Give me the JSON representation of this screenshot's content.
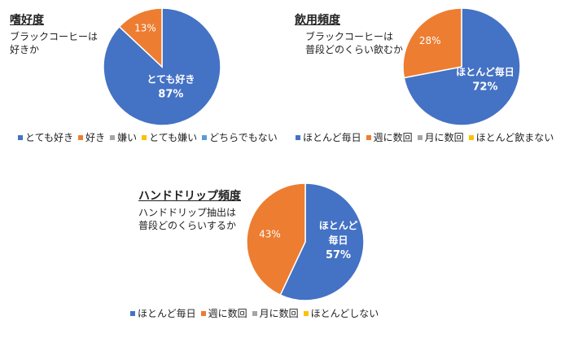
{
  "colors": {
    "blue": "#4472C4",
    "orange": "#ED7D31",
    "gray": "#A5A5A5",
    "yellow": "#FFC000"
  },
  "chart_data": [
    {
      "type": "pie",
      "title": "嗜好度",
      "subtitle_lines": [
        "ブラックコーヒーは",
        "好きか"
      ],
      "categories": [
        "とても好き",
        "好き",
        "嫌い",
        "とても嫌い",
        "どちらでもない"
      ],
      "values": [
        87,
        13,
        0,
        0,
        0
      ],
      "colors": [
        "#4472C4",
        "#ED7D31",
        "#A5A5A5",
        "#FFC000",
        "#5B9BD5"
      ],
      "labels": [
        {
          "lines": [
            "とても好き",
            "87%"
          ],
          "color": "#ffffff",
          "bold": true
        },
        {
          "lines": [
            "13%"
          ],
          "color": "#ffffff",
          "bold": false
        }
      ],
      "legend": "bottom"
    },
    {
      "type": "pie",
      "title": "飲用頻度",
      "subtitle_lines": [
        "ブラックコーヒーは",
        "普段どのくらい飲むか"
      ],
      "categories": [
        "ほとんど毎日",
        "週に数回",
        "月に数回",
        "ほとんど飲まない"
      ],
      "values": [
        72,
        28,
        0,
        0
      ],
      "colors": [
        "#4472C4",
        "#ED7D31",
        "#A5A5A5",
        "#FFC000"
      ],
      "labels": [
        {
          "lines": [
            "ほとんど毎日",
            "72%"
          ],
          "color": "#ffffff",
          "bold": true
        },
        {
          "lines": [
            "28%"
          ],
          "color": "#ffffff",
          "bold": false
        }
      ],
      "legend": "bottom"
    },
    {
      "type": "pie",
      "title": "ハンドドリップ頻度",
      "subtitle_lines": [
        "ハンドドリップ抽出は",
        "普段どのくらいするか"
      ],
      "categories": [
        "ほとんど毎日",
        "週に数回",
        "月に数回",
        "ほとんどしない"
      ],
      "values": [
        57,
        43,
        0,
        0
      ],
      "colors": [
        "#4472C4",
        "#ED7D31",
        "#A5A5A5",
        "#FFC000"
      ],
      "labels": [
        {
          "lines": [
            "ほとんど",
            "毎日",
            "57%"
          ],
          "color": "#ffffff",
          "bold": true
        },
        {
          "lines": [
            "43%"
          ],
          "color": "#ffffff",
          "bold": false
        }
      ],
      "legend": "bottom"
    }
  ]
}
